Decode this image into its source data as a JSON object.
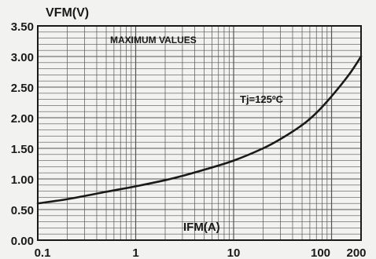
{
  "chart_data": {
    "type": "line",
    "title": "",
    "ylabel": "VFM(V)",
    "xlabel": "IFM(A)",
    "x_scale": "log",
    "xlim": [
      0.1,
      200
    ],
    "ylim": [
      0.0,
      3.5
    ],
    "grid": true,
    "x_ticks": [
      0.1,
      1,
      10,
      100,
      200
    ],
    "x_tick_labels": [
      "0.1",
      "1",
      "10",
      "100",
      "200"
    ],
    "y_ticks": [
      0.0,
      0.5,
      1.0,
      1.5,
      2.0,
      2.5,
      3.0,
      3.5
    ],
    "y_tick_labels": [
      "0.00",
      "0.50",
      "1.00",
      "1.50",
      "2.00",
      "2.50",
      "3.00",
      "3.50"
    ],
    "annotations": [
      "MAXIMUM VALUES",
      "Tj=125ºC"
    ],
    "series": [
      {
        "x": [
          0.1,
          0.2,
          0.5,
          1,
          2,
          3,
          5,
          10,
          20,
          30,
          50,
          70,
          100,
          150,
          200
        ],
        "y": [
          0.6,
          0.67,
          0.79,
          0.88,
          0.98,
          1.05,
          1.15,
          1.3,
          1.5,
          1.65,
          1.88,
          2.08,
          2.35,
          2.7,
          3.0
        ]
      }
    ]
  },
  "colors": {
    "background": "#f2f2f1",
    "line": "#1a1a1a",
    "grid": "#555555"
  }
}
